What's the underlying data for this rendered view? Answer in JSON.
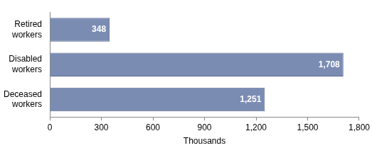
{
  "chart_data": {
    "type": "bar",
    "orientation": "horizontal",
    "categories": [
      "Retired workers",
      "Disabled workers",
      "Deceased workers"
    ],
    "values": [
      348,
      1708,
      1251
    ],
    "value_labels": [
      "348",
      "1,708",
      "1,251"
    ],
    "data_labels": true,
    "color": "#7b8cb3",
    "x_label": "Thousands",
    "xlim": [
      0,
      1800
    ],
    "xticks": [
      0,
      300,
      600,
      900,
      {
        "value": 1200,
        "label": "1,200"
      },
      {
        "value": 1500,
        "label": "1,500"
      },
      {
        "value": 1800,
        "label": "1,800"
      }
    ],
    "grid": false
  }
}
